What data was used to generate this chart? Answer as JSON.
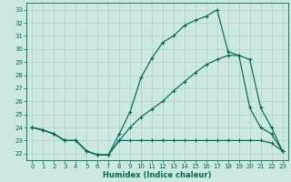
{
  "xlabel": "Humidex (Indice chaleur)",
  "background_color": "#cce8e0",
  "grid_color": "#aacfc8",
  "line_color": "#006858",
  "xlim": [
    -0.5,
    23.5
  ],
  "ylim": [
    21.5,
    33.5
  ],
  "xticks": [
    0,
    1,
    2,
    3,
    4,
    5,
    6,
    7,
    8,
    9,
    10,
    11,
    12,
    13,
    14,
    15,
    16,
    17,
    18,
    19,
    20,
    21,
    22,
    23
  ],
  "yticks": [
    22,
    23,
    24,
    25,
    26,
    27,
    28,
    29,
    30,
    31,
    32,
    33
  ],
  "line1_x": [
    0,
    1,
    2,
    3,
    4,
    5,
    6,
    7,
    8,
    9,
    10,
    11,
    12,
    13,
    14,
    15,
    16,
    17,
    18,
    19,
    20,
    21,
    22,
    23
  ],
  "line1_y": [
    24.0,
    23.8,
    23.5,
    23.0,
    23.0,
    22.2,
    21.9,
    21.9,
    23.0,
    23.0,
    23.0,
    23.0,
    23.0,
    23.0,
    23.0,
    23.0,
    23.0,
    23.0,
    23.0,
    23.0,
    23.0,
    23.0,
    22.8,
    22.2
  ],
  "line2_x": [
    0,
    1,
    2,
    3,
    4,
    5,
    6,
    7,
    8,
    9,
    10,
    11,
    12,
    13,
    14,
    15,
    16,
    17,
    18,
    19,
    20,
    21,
    22,
    23
  ],
  "line2_y": [
    24.0,
    23.8,
    23.5,
    23.0,
    23.0,
    22.2,
    21.9,
    21.9,
    23.0,
    24.0,
    24.8,
    25.4,
    26.0,
    26.8,
    27.5,
    28.2,
    28.8,
    29.2,
    29.5,
    29.5,
    29.2,
    25.5,
    24.0,
    22.2
  ],
  "line3_x": [
    0,
    1,
    2,
    3,
    4,
    5,
    6,
    7,
    8,
    9,
    10,
    11,
    12,
    13,
    14,
    15,
    16,
    17,
    18,
    19,
    20,
    21,
    22,
    23
  ],
  "line3_y": [
    24.0,
    23.8,
    23.5,
    23.0,
    23.0,
    22.2,
    21.9,
    21.9,
    23.5,
    25.2,
    27.8,
    29.3,
    30.5,
    31.0,
    31.8,
    32.2,
    32.5,
    33.0,
    29.8,
    29.5,
    25.5,
    24.0,
    23.5,
    22.2
  ],
  "xlabel_fontsize": 6,
  "tick_fontsize": 5
}
